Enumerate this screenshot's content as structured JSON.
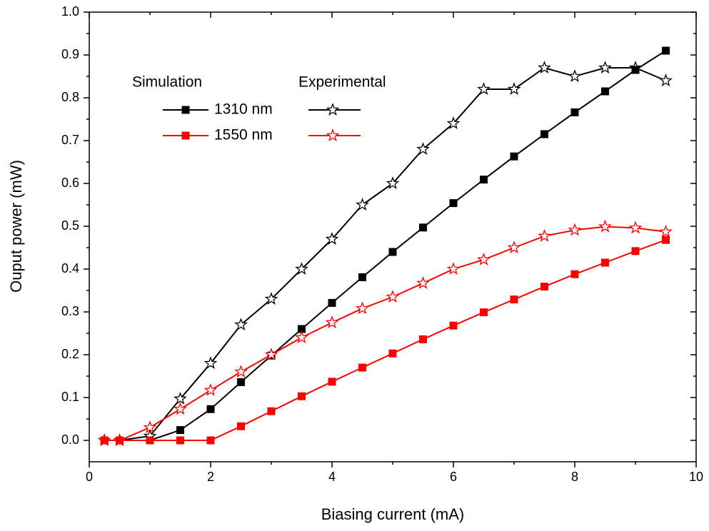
{
  "chart_data": {
    "type": "line",
    "xlabel": "Biasing current (mA)",
    "ylabel": "Ouput power (mW)",
    "x": [
      0.25,
      0.5,
      1,
      1.5,
      2,
      2.5,
      3,
      3.5,
      4,
      4.5,
      5,
      5.5,
      6,
      6.5,
      7,
      7.5,
      8,
      8.5,
      9,
      9.5
    ],
    "legend_columns": [
      "Simulation",
      "Experimental"
    ],
    "series": [
      {
        "name": "1310 nm",
        "color": "#000000",
        "simulation": [
          0,
          0,
          0,
          0.024,
          0.073,
          0.136,
          0.198,
          0.26,
          0.321,
          0.381,
          0.44,
          0.497,
          0.554,
          0.609,
          0.663,
          0.715,
          0.766,
          0.815,
          0.865,
          0.91
        ],
        "experimental": [
          0,
          0,
          0.01,
          0.097,
          0.18,
          0.27,
          0.33,
          0.4,
          0.47,
          0.55,
          0.6,
          0.68,
          0.74,
          0.82,
          0.82,
          0.87,
          0.85,
          0.87,
          0.87,
          0.84
        ]
      },
      {
        "name": "1550 nm",
        "color": "#ff0000",
        "simulation": [
          0,
          0,
          0,
          0,
          0,
          0.033,
          0.068,
          0.103,
          0.137,
          0.17,
          0.203,
          0.236,
          0.268,
          0.299,
          0.329,
          0.359,
          0.388,
          0.415,
          0.442,
          0.468
        ],
        "experimental": [
          0,
          0,
          0.03,
          0.073,
          0.117,
          0.16,
          0.2,
          0.24,
          0.275,
          0.308,
          0.335,
          0.367,
          0.4,
          0.422,
          0.45,
          0.477,
          0.491,
          0.499,
          0.496,
          0.487
        ]
      }
    ],
    "xlim": [
      0,
      10
    ],
    "xticks": [
      0,
      2,
      4,
      6,
      8,
      10
    ],
    "ylim": [
      -0.05,
      1.0
    ],
    "yticks": [
      {
        "value": 0,
        "label": "0.0"
      },
      0.1,
      0.2,
      0.3,
      0.4,
      0.5,
      0.6,
      0.7,
      0.8,
      0.9,
      {
        "value": 1,
        "label": "1.0"
      }
    ]
  }
}
